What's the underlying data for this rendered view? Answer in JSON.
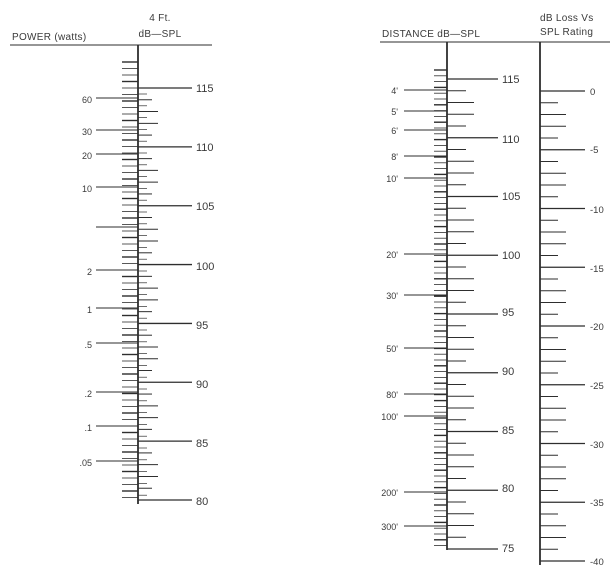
{
  "left_chart": {
    "headers": {
      "power": "POWER (watts)",
      "spl_line1": "4 Ft.",
      "spl_line2": "dB—SPL"
    },
    "power_labels": [
      "60",
      "30",
      "20",
      "10",
      "2",
      "1",
      ".5",
      ".2",
      ".1",
      ".05"
    ],
    "spl_labels": [
      "115",
      "110",
      "105",
      "100",
      "95",
      "90",
      "85",
      "80"
    ]
  },
  "right_chart": {
    "headers": {
      "distance": "DISTANCE dB—SPL",
      "loss_line1": "dB Loss Vs",
      "loss_line2": "SPL Rating"
    },
    "distance_labels": [
      "4'",
      "5'",
      "6'",
      "8'",
      "10'",
      "20'",
      "30'",
      "50'",
      "80'",
      "100'",
      "200'",
      "300'"
    ],
    "spl_labels": [
      "115",
      "110",
      "105",
      "100",
      "95",
      "90",
      "85",
      "80",
      "75"
    ],
    "loss_labels": [
      "0",
      "-5",
      "-10",
      "-15",
      "-20",
      "-25",
      "-30",
      "-35",
      "-40"
    ]
  }
}
